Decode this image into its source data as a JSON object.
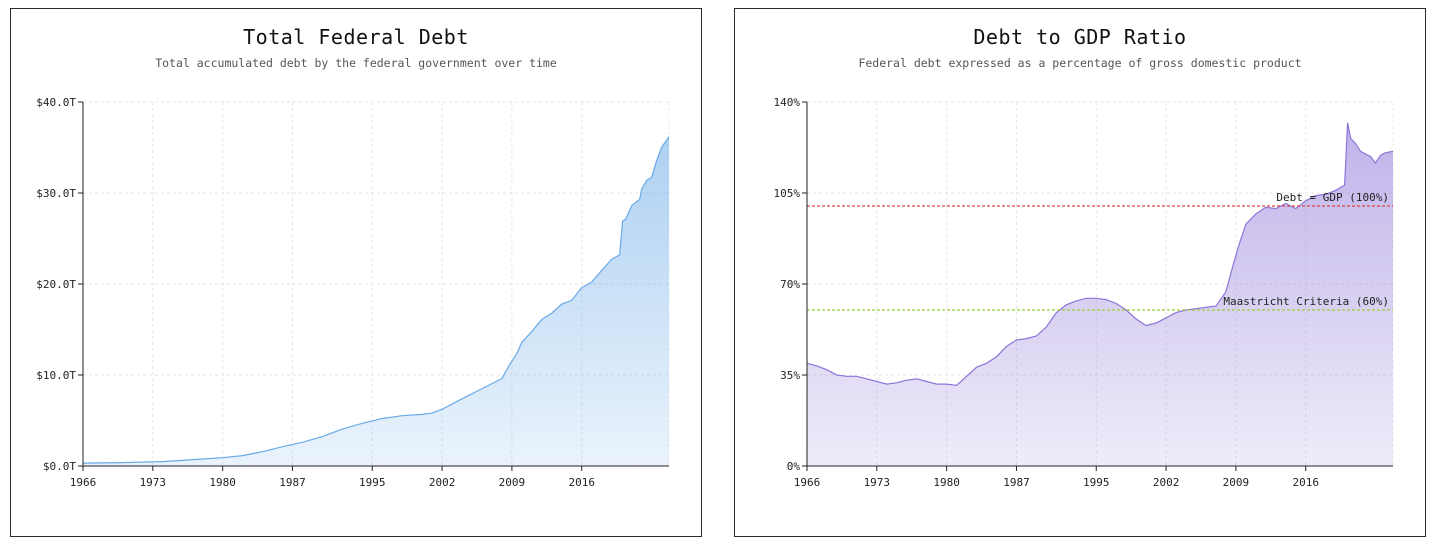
{
  "charts": [
    {
      "title": "Total Federal Debt",
      "subtitle": "Total accumulated debt by the federal government over time"
    },
    {
      "title": "Debt to GDP Ratio",
      "subtitle": "Federal debt expressed as a percentage of gross domestic product"
    }
  ],
  "chart_data": [
    {
      "type": "area",
      "title": "Total Federal Debt",
      "subtitle": "Total accumulated debt by the federal government over time",
      "xlabel": "",
      "ylabel": "",
      "xlim": [
        1966,
        2024.75
      ],
      "ylim": [
        0,
        40
      ],
      "x_ticks": [
        1966,
        1973,
        1980,
        1987,
        1995,
        2002,
        2009,
        2016
      ],
      "x_tick_labels": [
        "1966",
        "1973",
        "1980",
        "1987",
        "1995",
        "2002",
        "2009",
        "2016"
      ],
      "y_ticks": [
        0,
        10,
        20,
        30,
        40
      ],
      "y_tick_labels": [
        "$0.0T",
        "$10.0T",
        "$20.0T",
        "$30.0T",
        "$40.0T"
      ],
      "grid": true,
      "color": "#6aaae8",
      "x": [
        1966,
        1970,
        1974,
        1978,
        1980,
        1982,
        1984,
        1986,
        1988,
        1990,
        1992,
        1994,
        1996,
        1998,
        2000,
        2001,
        2002,
        2004,
        2006,
        2008,
        2008.7,
        2009.5,
        2010,
        2011,
        2012,
        2013,
        2014,
        2015,
        2016,
        2017,
        2018,
        2019,
        2019.8,
        2020.1,
        2020.4,
        2021,
        2021.8,
        2022,
        2022.5,
        2023,
        2023.5,
        2024,
        2024.75
      ],
      "values": [
        0.32,
        0.37,
        0.48,
        0.77,
        0.91,
        1.14,
        1.57,
        2.12,
        2.6,
        3.23,
        4.06,
        4.69,
        5.22,
        5.53,
        5.67,
        5.81,
        6.23,
        7.38,
        8.5,
        9.6,
        11.0,
        12.4,
        13.6,
        14.8,
        16.1,
        16.8,
        17.8,
        18.2,
        19.6,
        20.2,
        21.5,
        22.7,
        23.2,
        26.9,
        27.1,
        28.6,
        29.3,
        30.4,
        31.4,
        31.7,
        33.5,
        35.0,
        36.2
      ]
    },
    {
      "type": "area",
      "title": "Debt to GDP Ratio",
      "subtitle": "Federal debt expressed as a percentage of gross domestic product",
      "xlabel": "",
      "ylabel": "",
      "xlim": [
        1966,
        2024.75
      ],
      "ylim": [
        0,
        140
      ],
      "x_ticks": [
        1966,
        1973,
        1980,
        1987,
        1995,
        2002,
        2009,
        2016
      ],
      "x_tick_labels": [
        "1966",
        "1973",
        "1980",
        "1987",
        "1995",
        "2002",
        "2009",
        "2016"
      ],
      "y_ticks": [
        0,
        35,
        70,
        105,
        140
      ],
      "y_tick_labels": [
        "0%",
        "35%",
        "70%",
        "105%",
        "140%"
      ],
      "grid": true,
      "color": "#8c74d8",
      "reference_lines": [
        {
          "label": "Debt = GDP (100%)",
          "value": 100,
          "color": "#d9473f"
        },
        {
          "label": "Maastricht Criteria (60%)",
          "value": 60,
          "color": "#9ccc3c"
        }
      ],
      "x": [
        1966,
        1967,
        1968,
        1969,
        1970,
        1971,
        1972,
        1973,
        1974,
        1975,
        1976,
        1977,
        1978,
        1979,
        1980,
        1981,
        1982,
        1983,
        1984,
        1985,
        1986,
        1987,
        1988,
        1989,
        1990,
        1991,
        1992,
        1993,
        1994,
        1995,
        1996,
        1997,
        1998,
        1999,
        2000,
        2001,
        2002,
        2003,
        2004,
        2005,
        2006,
        2007,
        2008,
        2008.7,
        2009.3,
        2010,
        2011,
        2012,
        2013,
        2014,
        2015,
        2016,
        2017,
        2018,
        2019,
        2019.9,
        2020.2,
        2020.5,
        2021,
        2021.5,
        2022,
        2022.5,
        2023,
        2023.5,
        2024,
        2024.75
      ],
      "values": [
        39.5,
        38.5,
        37.0,
        35.0,
        34.5,
        34.5,
        33.5,
        32.5,
        31.5,
        32.0,
        33.0,
        33.5,
        32.5,
        31.5,
        31.5,
        31.0,
        34.5,
        38.0,
        39.5,
        42.0,
        46.0,
        48.5,
        49.0,
        50.0,
        53.5,
        59.0,
        62.0,
        63.5,
        64.5,
        64.5,
        64.0,
        62.5,
        60.0,
        56.5,
        54.0,
        55.0,
        57.0,
        59.0,
        60.0,
        60.5,
        61.0,
        61.5,
        67.0,
        77.0,
        85.0,
        93.0,
        97.0,
        99.5,
        99.0,
        101.0,
        99.0,
        102.0,
        104.0,
        104.5,
        106.0,
        108.0,
        132.0,
        126.0,
        124.0,
        121.0,
        120.0,
        119.0,
        116.5,
        119.5,
        120.5,
        121.0
      ]
    }
  ]
}
